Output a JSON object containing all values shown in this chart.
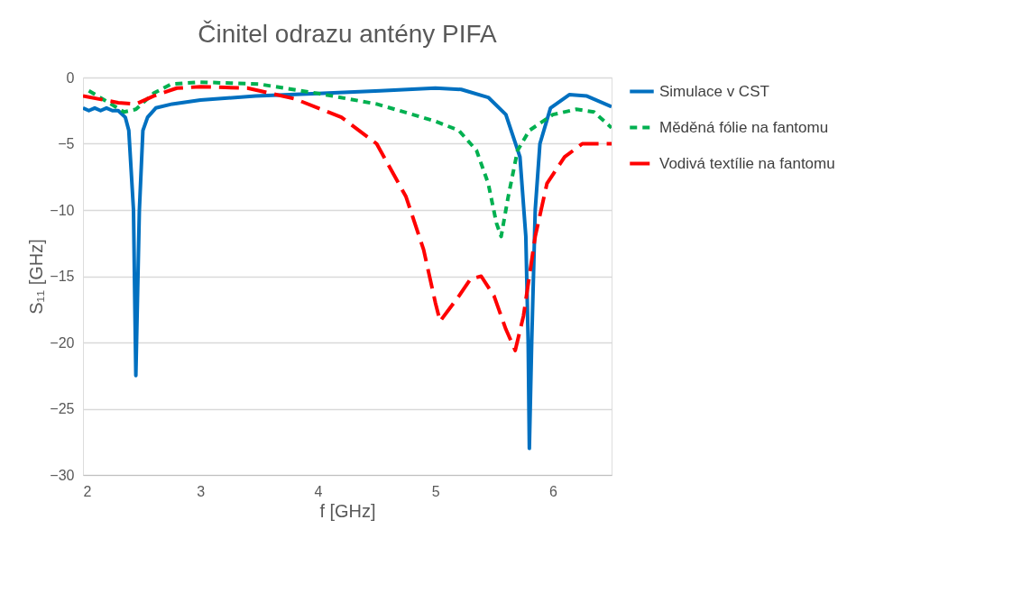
{
  "chart_data": {
    "type": "line",
    "title": "Činitel odrazu antény PIFA",
    "xlabel": "f [GHz]",
    "ylabel": "S₁₁ [GHz]",
    "xlim": [
      2,
      6.5
    ],
    "xticks": [
      2,
      3,
      4,
      5,
      6
    ],
    "ylim": [
      -30,
      0
    ],
    "yticks": [
      -30,
      -25,
      -20,
      -15,
      -10,
      -5,
      0
    ],
    "grid": "y",
    "legend": "right",
    "marker": "none",
    "series": [
      {
        "name": "Simulace v CST",
        "color": "#0070c0",
        "line_style": "solid",
        "x": [
          2,
          2.05,
          2.1,
          2.15,
          2.2,
          2.25,
          2.3,
          2.36,
          2.39,
          2.43,
          2.45,
          2.48,
          2.51,
          2.55,
          2.62,
          2.76,
          3,
          3.47,
          4,
          4.53,
          5,
          5.22,
          5.45,
          5.6,
          5.72,
          5.77,
          5.79,
          5.8,
          5.82,
          5.85,
          5.89,
          5.98,
          6.14,
          6.29,
          6.5
        ],
        "values": [
          -2.3,
          -2.5,
          -2.3,
          -2.5,
          -2.3,
          -2.5,
          -2.5,
          -3,
          -4,
          -10,
          -22.5,
          -10,
          -4,
          -3,
          -2.3,
          -2,
          -1.7,
          -1.4,
          -1.2,
          -1.0,
          -0.8,
          -0.9,
          -1.5,
          -2.8,
          -6,
          -12,
          -20,
          -28,
          -20,
          -10,
          -5,
          -2.3,
          -1.3,
          -1.4,
          -2.2
        ]
      },
      {
        "name": "Měděná fólie na fantomu",
        "color": "#00b050",
        "line_style": "dashed",
        "x": [
          2.05,
          2.2,
          2.35,
          2.45,
          2.6,
          2.75,
          3,
          3.5,
          4,
          4.5,
          5,
          5.2,
          5.35,
          5.45,
          5.52,
          5.56,
          5.62,
          5.7,
          5.8,
          6,
          6.2,
          6.35,
          6.5
        ],
        "values": [
          -1.0,
          -1.8,
          -2.6,
          -2.4,
          -1.2,
          -0.5,
          -0.35,
          -0.5,
          -1.2,
          -2,
          -3.3,
          -4,
          -5.5,
          -8,
          -11,
          -12,
          -9,
          -5.5,
          -4,
          -2.8,
          -2.4,
          -2.6,
          -3.8
        ]
      },
      {
        "name": "Vodivá textílie na fantomu",
        "color": "#ff0000",
        "line_style": "longdash",
        "x": [
          2,
          2.3,
          2.45,
          2.6,
          2.8,
          3,
          3.4,
          3.8,
          4.2,
          4.5,
          4.75,
          4.9,
          5.0,
          5.04,
          5.2,
          5.3,
          5.39,
          5.5,
          5.6,
          5.68,
          5.75,
          5.85,
          5.95,
          6.1,
          6.25,
          6.5
        ],
        "values": [
          -1.4,
          -1.9,
          -2.0,
          -1.4,
          -0.8,
          -0.7,
          -0.8,
          -1.6,
          -3.0,
          -5,
          -9,
          -13,
          -17,
          -18.4,
          -16.5,
          -15.2,
          -15.0,
          -16.5,
          -19,
          -20.6,
          -18,
          -12,
          -8,
          -6,
          -5,
          -5
        ]
      }
    ]
  }
}
